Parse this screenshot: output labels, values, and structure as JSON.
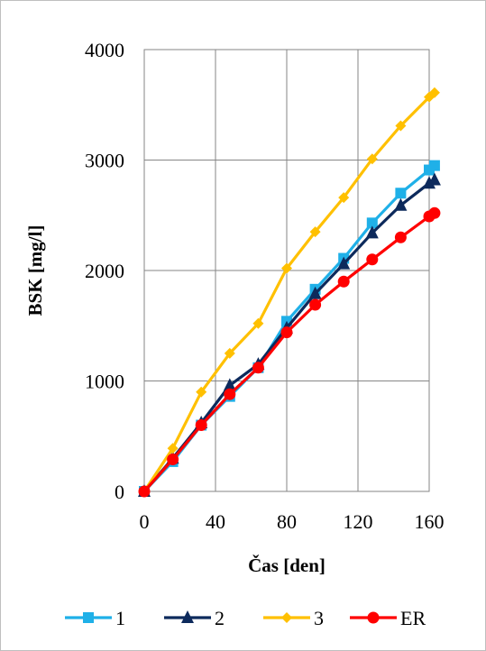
{
  "chart_data": {
    "type": "line",
    "xlabel": "Čas [den]",
    "ylabel": "BSK [mg/l]",
    "xlim": [
      0,
      160
    ],
    "ylim": [
      0,
      4000
    ],
    "x_ticks": [
      "0",
      "40",
      "80",
      "120",
      "160"
    ],
    "y_ticks": [
      "0",
      "1000",
      "2000",
      "3000",
      "4000"
    ],
    "grid": true,
    "legend_position": "bottom",
    "series": [
      {
        "name": "1",
        "color": "#1fb0e8",
        "marker": "square",
        "x": [
          0,
          16,
          32,
          48,
          64,
          80,
          96,
          112,
          128,
          144,
          160,
          163
        ],
        "y": [
          0,
          270,
          600,
          860,
          1120,
          1540,
          1830,
          2110,
          2430,
          2700,
          2910,
          2950
        ]
      },
      {
        "name": "2",
        "color": "#0d2a5c",
        "marker": "triangle",
        "x": [
          0,
          16,
          32,
          48,
          64,
          80,
          96,
          112,
          128,
          144,
          160,
          163
        ],
        "y": [
          0,
          300,
          620,
          960,
          1150,
          1480,
          1790,
          2060,
          2340,
          2590,
          2790,
          2820
        ]
      },
      {
        "name": "3",
        "color": "#ffc000",
        "marker": "diamond",
        "x": [
          0,
          16,
          32,
          48,
          64,
          80,
          96,
          112,
          128,
          144,
          160,
          163
        ],
        "y": [
          0,
          390,
          900,
          1250,
          1520,
          2020,
          2350,
          2660,
          3010,
          3310,
          3570,
          3610
        ]
      },
      {
        "name": "ER",
        "color": "#ff0000",
        "marker": "circle",
        "x": [
          0,
          16,
          32,
          48,
          64,
          80,
          96,
          112,
          128,
          144,
          160,
          163
        ],
        "y": [
          0,
          290,
          600,
          880,
          1120,
          1440,
          1690,
          1900,
          2100,
          2300,
          2490,
          2520
        ]
      }
    ]
  }
}
